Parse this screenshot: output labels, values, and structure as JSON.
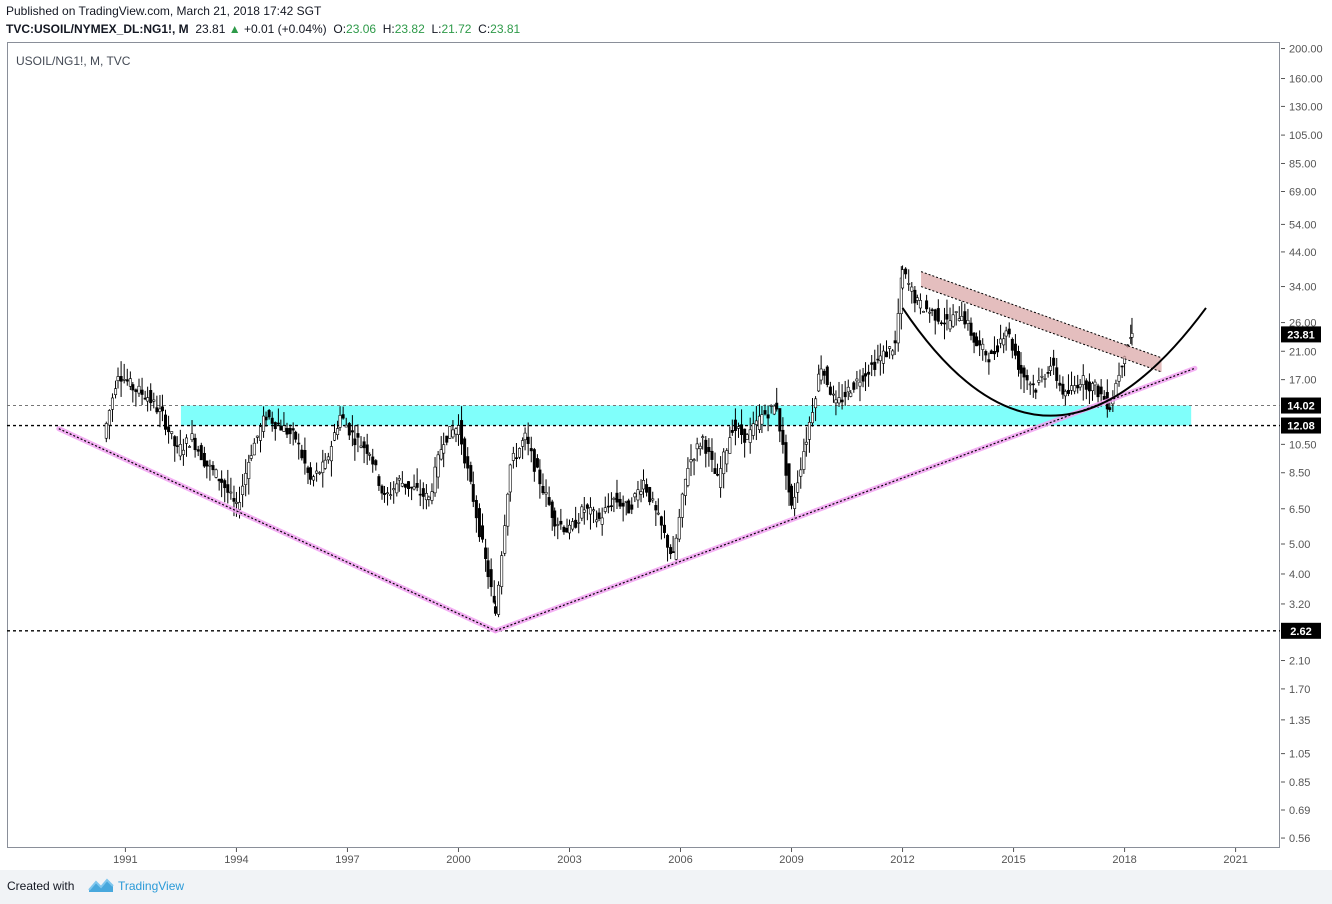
{
  "header": {
    "published": "Published on TradingView.com, March 21, 2018 17:42 SGT",
    "symbol_line": "TVC:USOIL/NYMEX_DL:NG1!, M",
    "last": "23.81",
    "change": "+0.01 (+0.04%)",
    "o_label": "O:",
    "o": "23.06",
    "h_label": "H:",
    "h": "23.82",
    "l_label": "L:",
    "l": "21.72",
    "c_label": "C:",
    "c": "23.81"
  },
  "chart": {
    "symbol_label": "USOIL/NG1!, M, TVC"
  },
  "footer": {
    "created_with": "Created with",
    "brand": "TradingView"
  },
  "colors": {
    "candles": "#000000",
    "support_zone": "#80fffb",
    "channel": "#dba8a8",
    "trendline": "#f3a3f3",
    "up": "#2e9a49"
  },
  "icons": [
    "triangle-up-icon",
    "tradingview-logo-icon"
  ],
  "chart_data": {
    "type": "candlestick",
    "title": "USOIL/NG1!, M, TVC",
    "y_scale": "log",
    "ylim": [
      0.52,
      210
    ],
    "xlim": [
      1987.8,
      2022.2
    ],
    "x_ticks": [
      "1991",
      "1994",
      "1997",
      "2000",
      "2003",
      "2006",
      "2009",
      "2012",
      "2015",
      "2018",
      "2021"
    ],
    "y_ticks": [
      "200.00",
      "160.00",
      "130.00",
      "105.00",
      "85.00",
      "69.00",
      "54.00",
      "44.00",
      "34.00",
      "26.00",
      "21.00",
      "17.00",
      "14.02",
      "12.08",
      "10.50",
      "8.50",
      "6.50",
      "5.00",
      "4.00",
      "3.20",
      "2.62",
      "2.10",
      "1.70",
      "1.35",
      "1.05",
      "0.85",
      "0.69",
      "0.56"
    ],
    "price_tags": [
      {
        "value": 23.81,
        "label": "23.81"
      },
      {
        "value": 14.02,
        "label": "14.02"
      },
      {
        "value": 12.08,
        "label": "12.08"
      },
      {
        "value": 2.62,
        "label": "2.62"
      }
    ],
    "series": [
      {
        "x": [
          1990.4,
          1990.8,
          1991.2,
          1991.6,
          1992.0,
          1992.4,
          1992.8,
          1993.2,
          1993.6,
          1994.0,
          1994.4,
          1994.8,
          1995.2,
          1995.6,
          1996.0,
          1996.4,
          1996.8,
          1997.2,
          1997.6,
          1998.0,
          1998.4,
          1998.8,
          1999.2,
          1999.6,
          2000.0,
          2000.4,
          2000.8,
          2001.0,
          2001.4,
          2001.8,
          2002.2,
          2002.6,
          2003.0,
          2003.4,
          2003.8,
          2004.2,
          2004.6,
          2005.0,
          2005.4,
          2005.8,
          2006.2,
          2006.6,
          2007.0,
          2007.4,
          2007.8,
          2008.2,
          2008.6,
          2009.0,
          2009.4,
          2009.8,
          2010.2,
          2010.6,
          2011.0,
          2011.4,
          2011.8,
          2012.0,
          2012.4,
          2012.8,
          2013.2,
          2013.6,
          2014.0,
          2014.4,
          2014.8,
          2015.2,
          2015.6,
          2016.0,
          2016.4,
          2016.8,
          2017.2,
          2017.6,
          2018.0,
          2018.2
        ],
        "y": [
          11,
          18,
          16,
          15,
          13,
          10,
          11,
          9,
          8,
          6.5,
          10,
          13,
          12,
          11,
          8,
          9,
          13,
          11,
          10,
          7,
          8,
          7.5,
          7,
          11,
          12,
          7,
          4,
          3,
          9,
          11,
          8,
          6,
          5.5,
          6.5,
          6,
          7,
          6.5,
          8,
          6,
          4.5,
          9,
          11,
          8,
          12,
          11,
          13,
          14,
          6.5,
          11,
          19,
          14,
          16,
          18,
          20,
          22,
          38,
          30,
          28,
          26,
          28,
          22,
          20,
          25,
          18,
          16,
          19,
          15,
          17,
          16,
          14,
          21,
          23.8
        ]
      }
    ],
    "annotations": [
      {
        "type": "support_zone",
        "from": 12.08,
        "to": 14.02
      },
      {
        "type": "trendline",
        "points": [
          [
            1989.2,
            11.8
          ],
          [
            2001.0,
            2.62
          ]
        ]
      },
      {
        "type": "trendline",
        "points": [
          [
            2001.0,
            2.62
          ],
          [
            2019.9,
            18.5
          ]
        ]
      },
      {
        "type": "channel",
        "upper": [
          [
            2012.5,
            38
          ],
          [
            2019.0,
            20
          ]
        ],
        "lower": [
          [
            2012.5,
            34
          ],
          [
            2019.0,
            18
          ]
        ]
      },
      {
        "type": "rounding_bottom",
        "points": [
          [
            2012.0,
            29
          ],
          [
            2016.0,
            13
          ],
          [
            2020.2,
            29
          ]
        ]
      },
      {
        "type": "hline",
        "value": 2.62
      },
      {
        "type": "hline",
        "value": 12.08
      },
      {
        "type": "hline",
        "value": 14.02
      }
    ]
  }
}
